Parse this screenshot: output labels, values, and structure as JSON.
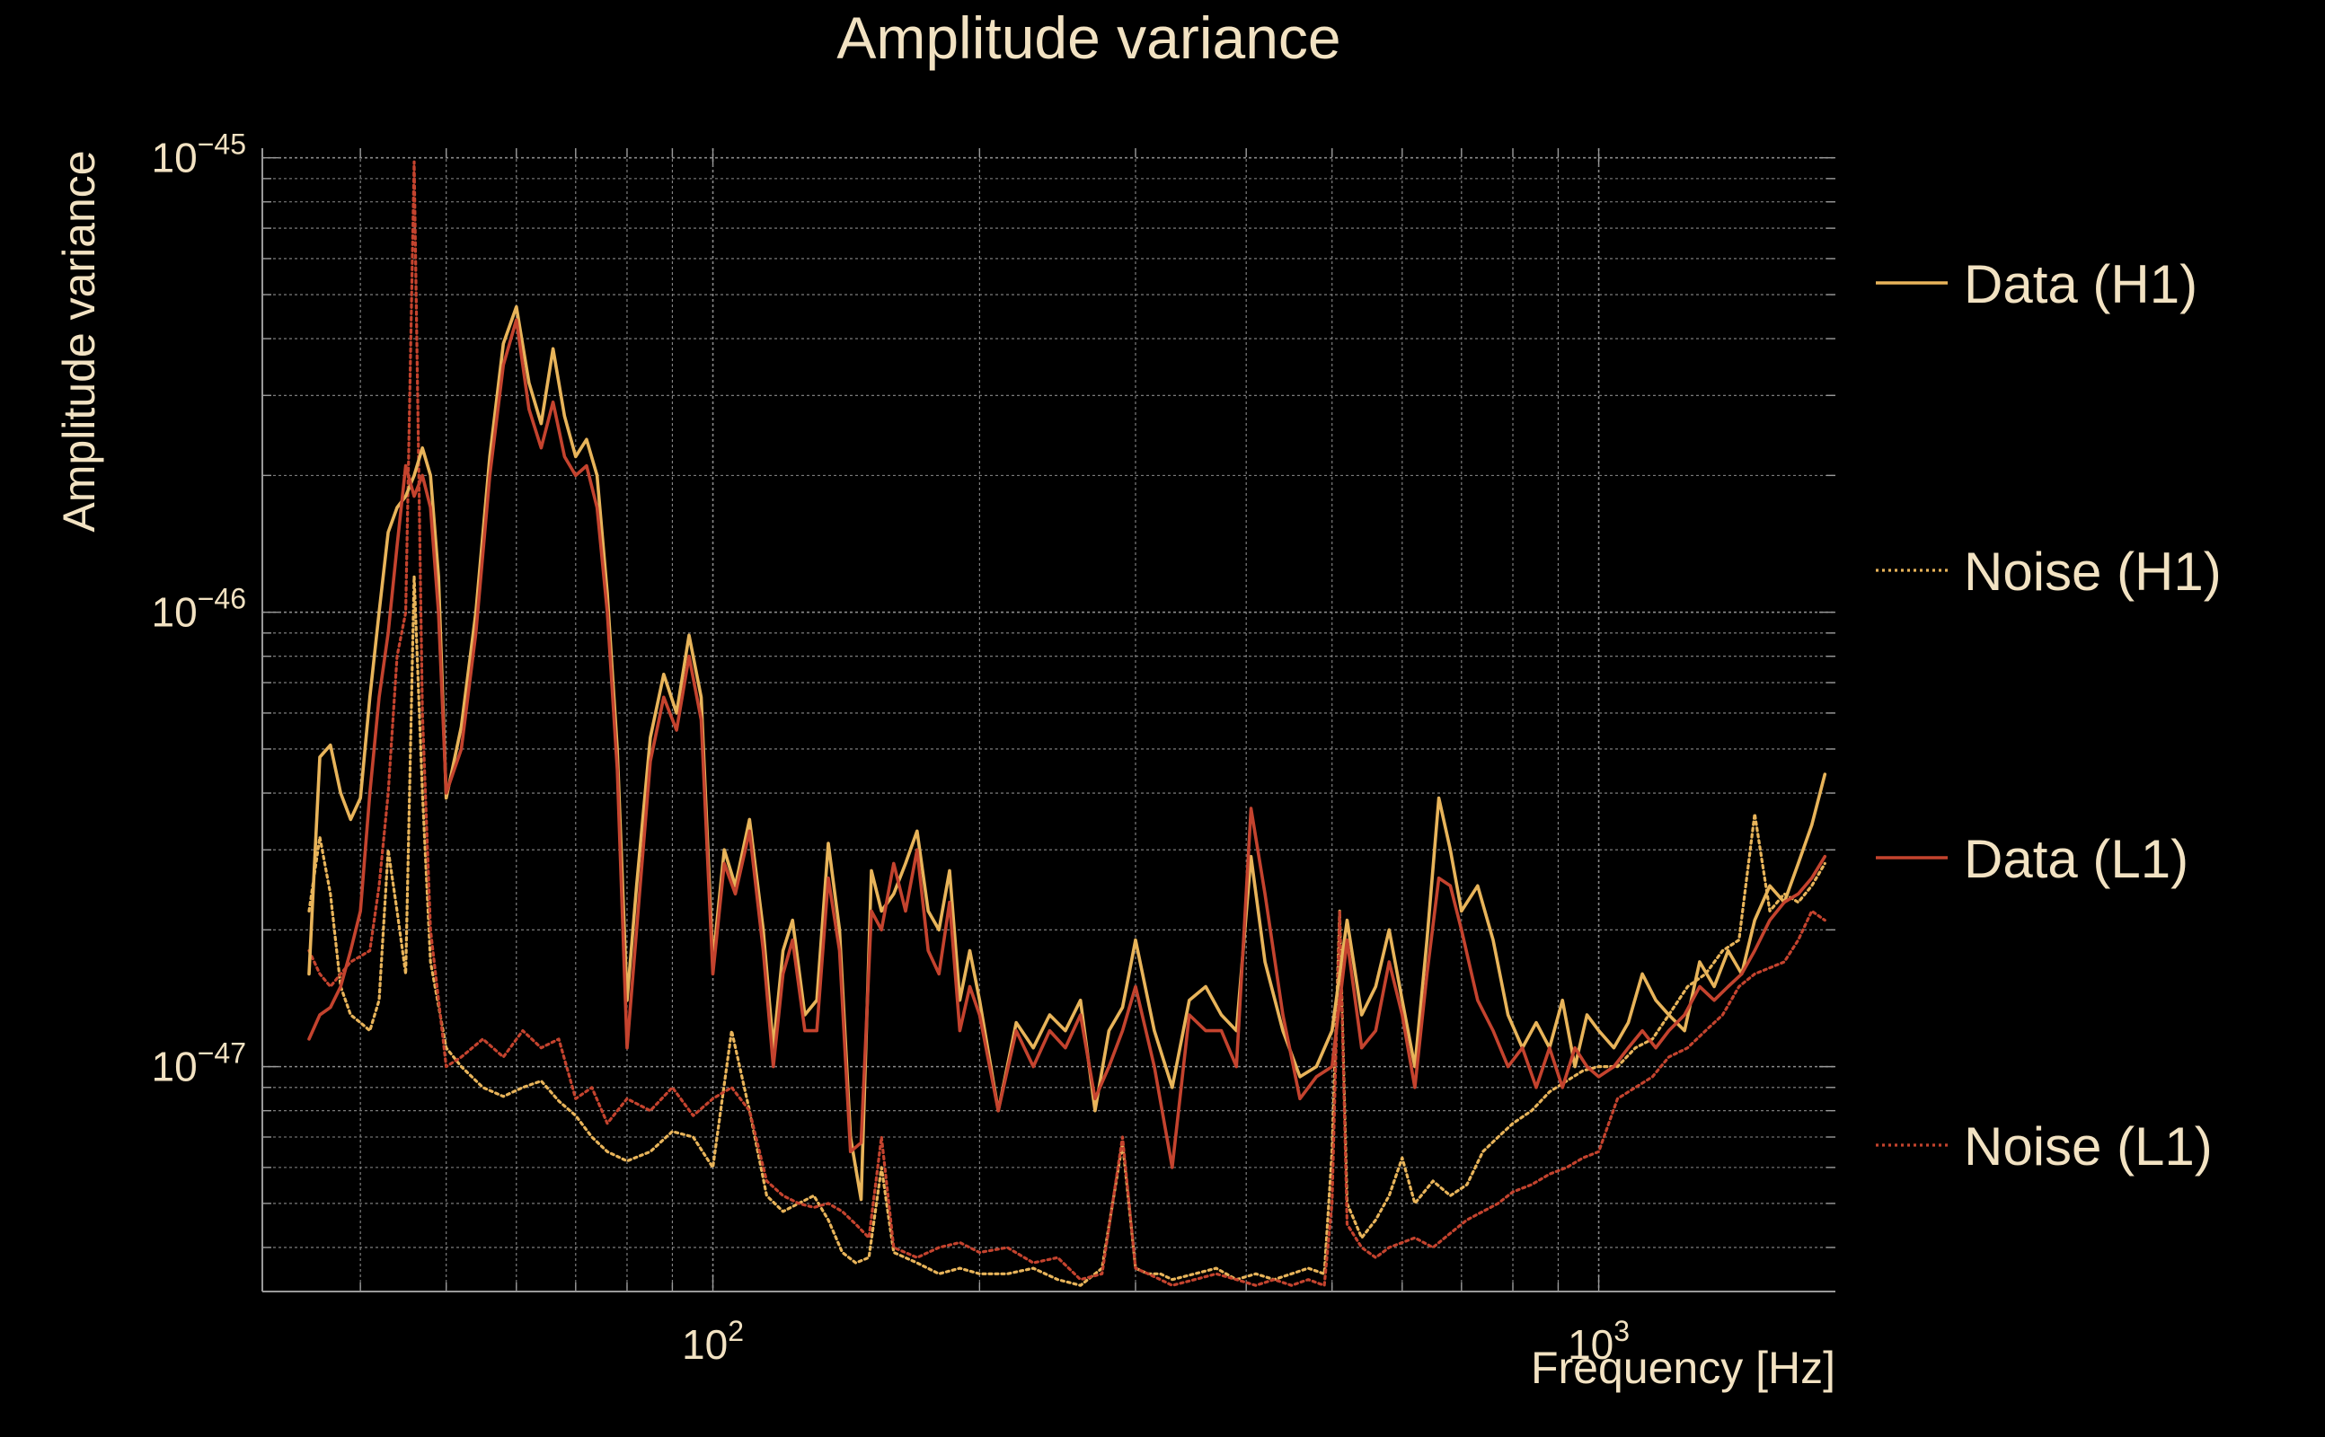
{
  "chart_data": {
    "type": "line",
    "title": "Amplitude variance",
    "xlabel": "Frequency [Hz]",
    "ylabel": "Amplitude variance",
    "x_scale": "log",
    "y_scale": "log",
    "xlim": [
      31,
      1850
    ],
    "ylim": [
      3.2e-48,
      1.05e-45
    ],
    "x_ticks": [
      {
        "value": 100,
        "label": "10",
        "exp": "2"
      },
      {
        "value": 1000,
        "label": "10",
        "exp": "3"
      }
    ],
    "y_ticks": [
      {
        "value": 1e-45,
        "label": "10",
        "exp": "−45"
      },
      {
        "value": 1e-46,
        "label": "10",
        "exp": "−46"
      },
      {
        "value": 1e-47,
        "label": "10",
        "exp": "−47"
      }
    ],
    "grid": true,
    "legend_position": "right",
    "colors": {
      "background": "#000000",
      "text": "#f2e2c2",
      "grid": "#8a8a8a",
      "axis": "#9a9a9a"
    },
    "series": [
      {
        "name": "Data (H1)",
        "color": "#e8b45a",
        "style": "solid",
        "x": [
          35,
          36,
          37,
          38,
          39,
          40,
          41,
          42,
          43,
          44,
          45,
          46,
          47,
          48,
          49,
          50,
          52,
          54,
          56,
          58,
          60,
          62,
          64,
          66,
          68,
          70,
          72,
          74,
          76,
          78,
          80,
          82,
          85,
          88,
          91,
          94,
          97,
          100,
          103,
          106,
          110,
          114,
          117,
          120,
          123,
          127,
          131,
          135,
          139,
          143,
          147,
          151,
          155,
          160,
          165,
          170,
          175,
          180,
          185,
          190,
          195,
          200,
          210,
          220,
          230,
          240,
          250,
          260,
          270,
          280,
          290,
          300,
          315,
          330,
          345,
          360,
          375,
          390,
          405,
          420,
          440,
          460,
          480,
          500,
          520,
          540,
          560,
          580,
          600,
          620,
          640,
          660,
          680,
          700,
          730,
          760,
          790,
          820,
          850,
          880,
          910,
          940,
          970,
          1000,
          1040,
          1080,
          1120,
          1160,
          1200,
          1250,
          1300,
          1350,
          1400,
          1450,
          1500,
          1560,
          1620,
          1680,
          1740,
          1800
        ],
        "y": [
          1.6e-47,
          4.8e-47,
          5.1e-47,
          4e-47,
          3.5e-47,
          3.9e-47,
          6.5e-47,
          1e-46,
          1.5e-46,
          1.7e-46,
          1.8e-46,
          2e-46,
          2.3e-46,
          2e-46,
          1.2e-46,
          3.9e-47,
          5.6e-47,
          1e-46,
          2.2e-46,
          3.9e-46,
          4.7e-46,
          3.2e-46,
          2.6e-46,
          3.8e-46,
          2.7e-46,
          2.2e-46,
          2.4e-46,
          2e-46,
          1.1e-46,
          5e-47,
          1.4e-47,
          2.5e-47,
          5.3e-47,
          7.3e-47,
          6e-47,
          8.9e-47,
          6.5e-47,
          1.7e-47,
          3e-47,
          2.5e-47,
          3.5e-47,
          2e-47,
          1.1e-47,
          1.8e-47,
          2.1e-47,
          1.3e-47,
          1.4e-47,
          3.1e-47,
          2e-47,
          7e-48,
          5.1e-48,
          2.7e-47,
          2.2e-47,
          2.4e-47,
          2.8e-47,
          3.3e-47,
          2.2e-47,
          2e-47,
          2.7e-47,
          1.4e-47,
          1.8e-47,
          1.4e-47,
          8e-48,
          1.25e-47,
          1.1e-47,
          1.3e-47,
          1.2e-47,
          1.4e-47,
          8e-48,
          1.2e-47,
          1.35e-47,
          1.9e-47,
          1.2e-47,
          9e-48,
          1.4e-47,
          1.5e-47,
          1.3e-47,
          1.2e-47,
          2.9e-47,
          1.7e-47,
          1.2e-47,
          9.5e-48,
          1e-47,
          1.2e-47,
          2.1e-47,
          1.3e-47,
          1.5e-47,
          2e-47,
          1.4e-47,
          1e-47,
          1.9e-47,
          3.9e-47,
          3e-47,
          2.2e-47,
          2.5e-47,
          1.9e-47,
          1.3e-47,
          1.1e-47,
          1.25e-47,
          1.1e-47,
          1.4e-47,
          1e-47,
          1.3e-47,
          1.2e-47,
          1.1e-47,
          1.25e-47,
          1.6e-47,
          1.4e-47,
          1.3e-47,
          1.2e-47,
          1.7e-47,
          1.5e-47,
          1.8e-47,
          1.6e-47,
          2.1e-47,
          2.5e-47,
          2.3e-47,
          2.8e-47,
          3.4e-47,
          4.4e-47
        ],
        "y_note": ""
      },
      {
        "name": "Noise (H1)",
        "color": "#e8b45a",
        "style": "dotted",
        "x": [
          35,
          36,
          37,
          38,
          39,
          40,
          41,
          42,
          43,
          44,
          45,
          46,
          47,
          48,
          50,
          52,
          55,
          58,
          61,
          64,
          67,
          70,
          73,
          76,
          80,
          85,
          90,
          95,
          100,
          105,
          110,
          115,
          120,
          125,
          130,
          135,
          140,
          145,
          150,
          155,
          160,
          170,
          180,
          190,
          200,
          215,
          230,
          245,
          260,
          275,
          290,
          300,
          310,
          320,
          330,
          350,
          370,
          390,
          410,
          430,
          450,
          470,
          490,
          500,
          510,
          520,
          540,
          560,
          580,
          600,
          620,
          650,
          680,
          710,
          740,
          770,
          800,
          840,
          880,
          920,
          960,
          1000,
          1050,
          1100,
          1150,
          1200,
          1260,
          1320,
          1380,
          1440,
          1500,
          1560,
          1620,
          1680,
          1740,
          1800
        ],
        "y": [
          2.2e-47,
          3.2e-47,
          2.4e-47,
          1.5e-47,
          1.3e-47,
          1.25e-47,
          1.2e-47,
          1.4e-47,
          3e-47,
          2.2e-47,
          1.6e-47,
          1.2e-46,
          4e-47,
          1.7e-47,
          1.1e-47,
          1e-47,
          9e-48,
          8.6e-48,
          9e-48,
          9.3e-48,
          8.4e-48,
          7.8e-48,
          7e-48,
          6.5e-48,
          6.2e-48,
          6.5e-48,
          7.2e-48,
          7e-48,
          6e-48,
          1.2e-47,
          8e-48,
          5.2e-48,
          4.8e-48,
          5e-48,
          5.2e-48,
          4.6e-48,
          3.9e-48,
          3.7e-48,
          3.8e-48,
          6e-48,
          3.9e-48,
          3.7e-48,
          3.5e-48,
          3.6e-48,
          3.5e-48,
          3.5e-48,
          3.6e-48,
          3.4e-48,
          3.3e-48,
          3.6e-48,
          6.8e-48,
          3.6e-48,
          3.5e-48,
          3.5e-48,
          3.4e-48,
          3.5e-48,
          3.6e-48,
          3.4e-48,
          3.5e-48,
          3.4e-48,
          3.5e-48,
          3.6e-48,
          3.5e-48,
          6.5e-48,
          2.2e-47,
          5e-48,
          4.2e-48,
          4.6e-48,
          5.2e-48,
          6.3e-48,
          5e-48,
          5.6e-48,
          5.2e-48,
          5.5e-48,
          6.5e-48,
          7e-48,
          7.5e-48,
          8e-48,
          8.8e-48,
          9.3e-48,
          9.8e-48,
          1e-47,
          1e-47,
          1.1e-47,
          1.15e-47,
          1.3e-47,
          1.5e-47,
          1.6e-47,
          1.8e-47,
          1.9e-47,
          3.6e-47,
          2.2e-47,
          2.4e-47,
          2.3e-47,
          2.5e-47,
          2.8e-47
        ]
      },
      {
        "name": "Data (L1)",
        "color": "#c4432e",
        "style": "solid",
        "x": [
          35,
          36,
          37,
          38,
          39,
          40,
          41,
          42,
          43,
          44,
          45,
          46,
          47,
          48,
          49,
          50,
          52,
          54,
          56,
          58,
          60,
          62,
          64,
          66,
          68,
          70,
          72,
          74,
          76,
          78,
          80,
          82,
          85,
          88,
          91,
          94,
          97,
          100,
          103,
          106,
          110,
          114,
          117,
          120,
          123,
          127,
          131,
          135,
          139,
          143,
          147,
          151,
          155,
          160,
          165,
          170,
          175,
          180,
          185,
          190,
          195,
          200,
          210,
          220,
          230,
          240,
          250,
          260,
          270,
          280,
          290,
          300,
          315,
          330,
          345,
          360,
          375,
          390,
          405,
          420,
          440,
          460,
          480,
          500,
          520,
          540,
          560,
          580,
          600,
          620,
          640,
          660,
          680,
          700,
          730,
          760,
          790,
          820,
          850,
          880,
          910,
          940,
          970,
          1000,
          1040,
          1080,
          1120,
          1160,
          1200,
          1250,
          1300,
          1350,
          1400,
          1450,
          1500,
          1560,
          1620,
          1680,
          1740,
          1800
        ],
        "y": [
          1.15e-47,
          1.3e-47,
          1.35e-47,
          1.5e-47,
          1.8e-47,
          2.2e-47,
          4e-47,
          6.5e-47,
          9e-47,
          1.4e-46,
          2.1e-46,
          1.8e-46,
          2e-46,
          1.7e-46,
          1e-46,
          4e-47,
          5e-47,
          9e-47,
          2e-46,
          3.5e-46,
          4.4e-46,
          2.8e-46,
          2.3e-46,
          2.9e-46,
          2.2e-46,
          2e-46,
          2.1e-46,
          1.7e-46,
          1e-46,
          4.5e-47,
          1.1e-47,
          2e-47,
          4.7e-47,
          6.5e-47,
          5.5e-47,
          8e-47,
          5.8e-47,
          1.6e-47,
          2.8e-47,
          2.4e-47,
          3.3e-47,
          1.8e-47,
          1e-47,
          1.6e-47,
          1.9e-47,
          1.2e-47,
          1.2e-47,
          2.6e-47,
          1.8e-47,
          6.5e-48,
          6.8e-48,
          2.2e-47,
          2e-47,
          2.8e-47,
          2.2e-47,
          3e-47,
          1.8e-47,
          1.6e-47,
          2.3e-47,
          1.2e-47,
          1.5e-47,
          1.3e-47,
          8e-48,
          1.2e-47,
          1e-47,
          1.2e-47,
          1.1e-47,
          1.3e-47,
          8.5e-48,
          1e-47,
          1.2e-47,
          1.5e-47,
          1e-47,
          6e-48,
          1.3e-47,
          1.2e-47,
          1.2e-47,
          1e-47,
          3.7e-47,
          2.4e-47,
          1.3e-47,
          8.5e-48,
          9.5e-48,
          1e-47,
          1.9e-47,
          1.1e-47,
          1.2e-47,
          1.7e-47,
          1.3e-47,
          9e-48,
          1.6e-47,
          2.6e-47,
          2.5e-47,
          2e-47,
          1.4e-47,
          1.2e-47,
          1e-47,
          1.1e-47,
          9e-48,
          1.1e-47,
          9e-48,
          1.1e-47,
          1e-47,
          9.5e-48,
          1e-47,
          1.1e-47,
          1.2e-47,
          1.1e-47,
          1.2e-47,
          1.3e-47,
          1.5e-47,
          1.4e-47,
          1.5e-47,
          1.6e-47,
          1.8e-47,
          2.1e-47,
          2.3e-47,
          2.4e-47,
          2.6e-47,
          2.9e-47
        ]
      },
      {
        "name": "Noise (L1)",
        "color": "#c4432e",
        "style": "dotted",
        "x": [
          35,
          36,
          37,
          38,
          39,
          40,
          41,
          42,
          43,
          44,
          45,
          46,
          47,
          48,
          50,
          52,
          55,
          58,
          61,
          64,
          67,
          70,
          73,
          76,
          80,
          85,
          90,
          95,
          100,
          105,
          110,
          115,
          120,
          125,
          130,
          135,
          140,
          145,
          150,
          155,
          160,
          170,
          180,
          190,
          200,
          215,
          230,
          245,
          260,
          275,
          290,
          300,
          310,
          320,
          330,
          350,
          370,
          390,
          410,
          430,
          450,
          470,
          490,
          500,
          510,
          520,
          540,
          560,
          580,
          600,
          620,
          650,
          680,
          710,
          740,
          770,
          800,
          840,
          880,
          920,
          960,
          1000,
          1050,
          1100,
          1150,
          1200,
          1260,
          1320,
          1380,
          1440,
          1500,
          1560,
          1620,
          1680,
          1740,
          1800
        ],
        "y": [
          1.8e-47,
          1.6e-47,
          1.5e-47,
          1.6e-47,
          1.7e-47,
          1.75e-47,
          1.8e-47,
          2.5e-47,
          4e-47,
          8e-47,
          1e-46,
          9.8e-46,
          6e-47,
          2e-47,
          1e-47,
          1.05e-47,
          1.15e-47,
          1.05e-47,
          1.2e-47,
          1.1e-47,
          1.15e-47,
          8.5e-48,
          9e-48,
          7.5e-48,
          8.5e-48,
          8e-48,
          9e-48,
          7.8e-48,
          8.5e-48,
          9e-48,
          8e-48,
          5.6e-48,
          5.2e-48,
          5e-48,
          4.9e-48,
          5e-48,
          4.8e-48,
          4.5e-48,
          4.2e-48,
          7e-48,
          4e-48,
          3.8e-48,
          4e-48,
          4.1e-48,
          3.9e-48,
          4e-48,
          3.7e-48,
          3.8e-48,
          3.4e-48,
          3.5e-48,
          7e-48,
          3.6e-48,
          3.5e-48,
          3.4e-48,
          3.3e-48,
          3.4e-48,
          3.5e-48,
          3.4e-48,
          3.3e-48,
          3.4e-48,
          3.3e-48,
          3.4e-48,
          3.3e-48,
          5e-48,
          2.2e-47,
          4.5e-48,
          4e-48,
          3.8e-48,
          4e-48,
          4.1e-48,
          4.2e-48,
          4e-48,
          4.3e-48,
          4.6e-48,
          4.8e-48,
          5e-48,
          5.3e-48,
          5.5e-48,
          5.8e-48,
          6e-48,
          6.3e-48,
          6.5e-48,
          8.5e-48,
          9e-48,
          9.5e-48,
          1.05e-47,
          1.1e-47,
          1.2e-47,
          1.3e-47,
          1.5e-47,
          1.6e-47,
          1.65e-47,
          1.7e-47,
          1.9e-47,
          2.2e-47,
          2.1e-47
        ]
      }
    ]
  }
}
